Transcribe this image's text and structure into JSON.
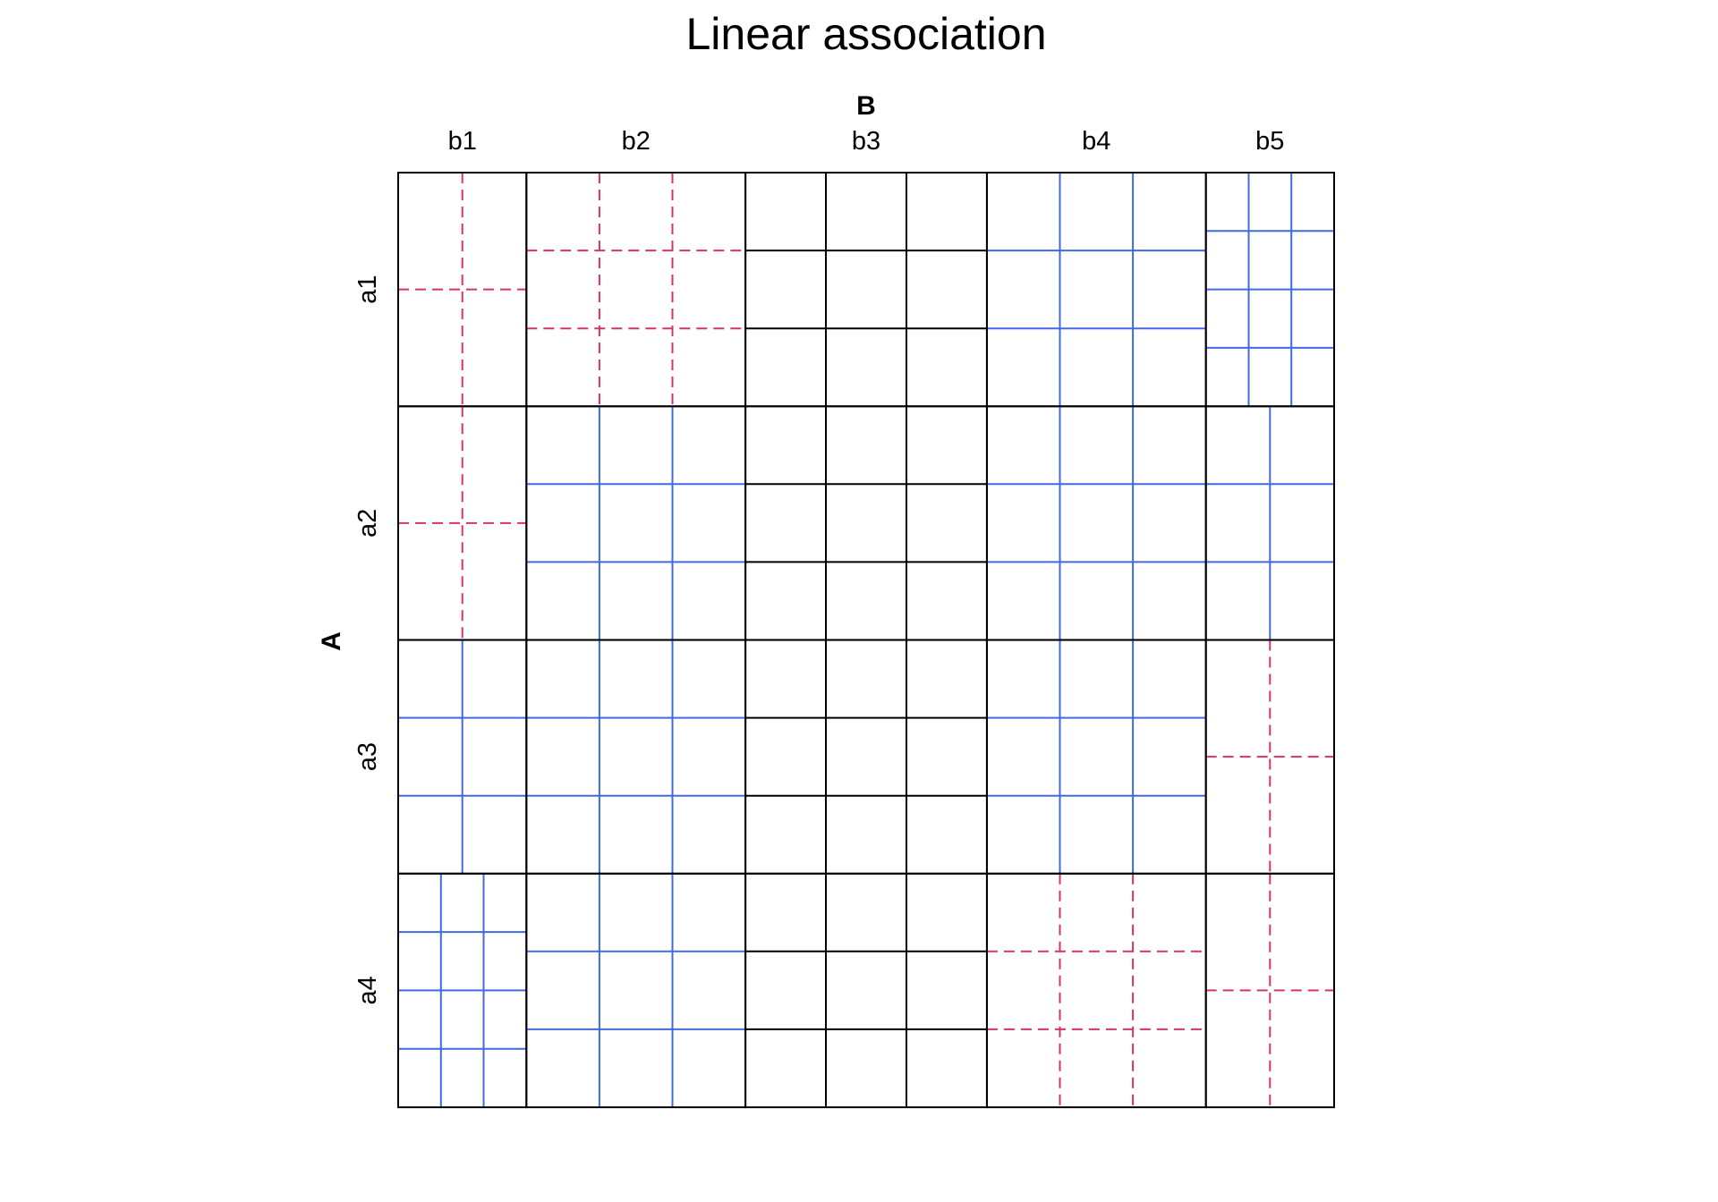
{
  "chart_data": {
    "type": "mosaic",
    "title": "Linear association",
    "x_variable": "B",
    "y_variable": "A",
    "x_levels": [
      "b1",
      "b2",
      "b3",
      "b4",
      "b5"
    ],
    "y_levels": [
      "a1",
      "a2",
      "a3",
      "a4"
    ],
    "column_proportions": [
      0.137,
      0.234,
      0.258,
      0.234,
      0.137
    ],
    "cells": [
      [
        {
          "row": "a1",
          "col": "b1",
          "sign": "negative",
          "grid": [
            2,
            2
          ]
        },
        {
          "row": "a1",
          "col": "b2",
          "sign": "negative",
          "grid": [
            3,
            3
          ]
        },
        {
          "row": "a1",
          "col": "b3",
          "sign": "neutral",
          "grid": [
            3,
            3
          ]
        },
        {
          "row": "a1",
          "col": "b4",
          "sign": "positive",
          "grid": [
            3,
            3
          ]
        },
        {
          "row": "a1",
          "col": "b5",
          "sign": "positive",
          "grid": [
            3,
            4
          ]
        }
      ],
      [
        {
          "row": "a2",
          "col": "b1",
          "sign": "negative",
          "grid": [
            2,
            2
          ]
        },
        {
          "row": "a2",
          "col": "b2",
          "sign": "positive",
          "grid": [
            3,
            3
          ]
        },
        {
          "row": "a2",
          "col": "b3",
          "sign": "neutral",
          "grid": [
            3,
            3
          ]
        },
        {
          "row": "a2",
          "col": "b4",
          "sign": "positive",
          "grid": [
            3,
            3
          ]
        },
        {
          "row": "a2",
          "col": "b5",
          "sign": "positive",
          "grid": [
            2,
            3
          ]
        }
      ],
      [
        {
          "row": "a3",
          "col": "b1",
          "sign": "positive",
          "grid": [
            2,
            3
          ]
        },
        {
          "row": "a3",
          "col": "b2",
          "sign": "positive",
          "grid": [
            3,
            3
          ]
        },
        {
          "row": "a3",
          "col": "b3",
          "sign": "neutral",
          "grid": [
            3,
            3
          ]
        },
        {
          "row": "a3",
          "col": "b4",
          "sign": "positive",
          "grid": [
            3,
            3
          ]
        },
        {
          "row": "a3",
          "col": "b5",
          "sign": "negative",
          "grid": [
            2,
            2
          ]
        }
      ],
      [
        {
          "row": "a4",
          "col": "b1",
          "sign": "positive",
          "grid": [
            3,
            4
          ]
        },
        {
          "row": "a4",
          "col": "b2",
          "sign": "positive",
          "grid": [
            3,
            3
          ]
        },
        {
          "row": "a4",
          "col": "b3",
          "sign": "neutral",
          "grid": [
            3,
            3
          ]
        },
        {
          "row": "a4",
          "col": "b4",
          "sign": "negative",
          "grid": [
            3,
            3
          ]
        },
        {
          "row": "a4",
          "col": "b5",
          "sign": "negative",
          "grid": [
            2,
            2
          ]
        }
      ]
    ],
    "colors": {
      "positive": "#4169e1",
      "negative": "#d6336c",
      "neutral": "#000000",
      "frame": "#000000"
    }
  }
}
